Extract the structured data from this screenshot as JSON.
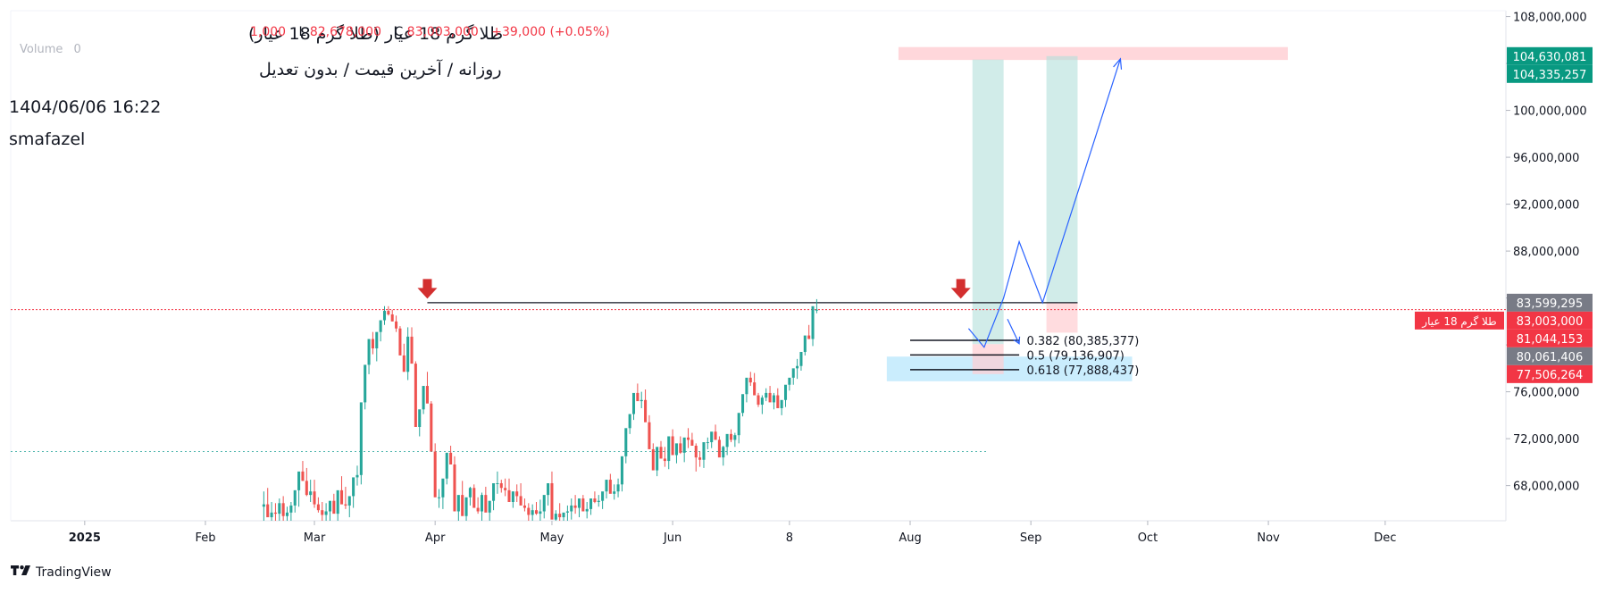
{
  "header": {
    "title": "طلا گرم 18 عیار (طلا گرم 18 عیار)",
    "ohlc_high": "1,000",
    "ohlc_low_label": "L",
    "ohlc_low": "82,678,000",
    "ohlc_close_label": "C",
    "ohlc_close": "83,003,000",
    "change": "+39,000 (+0.05%)",
    "volume_label": "Volume",
    "volume_value": "0",
    "subtitle": "روزانه / آخرین قیمت / بدون تعدیل",
    "datetime": "1404/06/06 16:22",
    "author": "smafazel"
  },
  "footer": {
    "brand": "TradingView",
    "brand_logo": "tradingview-logo-icon"
  },
  "colors": {
    "up": "#26a69a",
    "down": "#ef5350",
    "arrow": "#d32f2f",
    "target": "#ffcdd2",
    "long_zone": "#b2dfdb",
    "fib_zone": "#b3e5fc",
    "projection": "#2962ff",
    "price_line": "#f23645"
  },
  "chart_data": {
    "type": "candlestick",
    "symbol": "طلا گرم 18 عیار",
    "y_axis": {
      "ticks": [
        108000000,
        104000000,
        100000000,
        96000000,
        92000000,
        88000000,
        84000000,
        80000000,
        76000000,
        72000000,
        68000000
      ],
      "tick_labels": [
        "108,000,000",
        "",
        "100,000,000",
        "96,000,000",
        "92,000,000",
        "88,000,000",
        "",
        "",
        "76,000,000",
        "72,000,000",
        "68,000,000"
      ],
      "range": [
        65000000,
        108500000
      ]
    },
    "x_axis": {
      "labels": [
        "2025",
        "Feb",
        "Mar",
        "Apr",
        "May",
        "Jun",
        "8",
        "Aug",
        "Sep",
        "Oct",
        "Nov",
        "Dec"
      ],
      "label_days": [
        0,
        31,
        59,
        90,
        120,
        151,
        181,
        212,
        243,
        273,
        304,
        334
      ],
      "bold_labels": [
        "2025"
      ],
      "range_days": [
        -19,
        365
      ]
    },
    "candles_start_day": 46,
    "candles_ohlc": [
      [
        66.2,
        67.5,
        65.0,
        66.4
      ],
      [
        66.4,
        67.8,
        65.8,
        65.3
      ],
      [
        65.3,
        66.6,
        65.0,
        65.7
      ],
      [
        65.7,
        66.5,
        65.0,
        65.6
      ],
      [
        65.6,
        66.9,
        65.0,
        66.5
      ],
      [
        66.5,
        67.1,
        65.0,
        65.4
      ],
      [
        65.4,
        66.2,
        65.0,
        65.7
      ],
      [
        65.7,
        66.6,
        65.0,
        66.3
      ],
      [
        66.3,
        67.6,
        65.7,
        67.6
      ],
      [
        67.6,
        68.3,
        66.2,
        69.2
      ],
      [
        69.2,
        70.1,
        68.4,
        68.4
      ],
      [
        68.4,
        69.5,
        67.1,
        67.2
      ],
      [
        67.2,
        68.5,
        66.6,
        67.5
      ],
      [
        67.5,
        68.5,
        66.1,
        66.4
      ],
      [
        66.4,
        67.0,
        65.7,
        65.9
      ],
      [
        65.9,
        66.6,
        65.0,
        65.5
      ],
      [
        65.5,
        66.5,
        65.0,
        65.8
      ],
      [
        65.8,
        66.4,
        65.0,
        66.7
      ],
      [
        66.7,
        67.3,
        65.8,
        65.6
      ],
      [
        65.6,
        66.4,
        65.0,
        67.6
      ],
      [
        67.6,
        68.8,
        67.1,
        66.4
      ],
      [
        66.4,
        67.9,
        66.0,
        66.3
      ],
      [
        66.3,
        66.9,
        65.3,
        67.1
      ],
      [
        67.1,
        68.3,
        66.1,
        68.7
      ],
      [
        68.7,
        69.7,
        68.0,
        68.9
      ],
      [
        68.9,
        69.7,
        68.1,
        75.1
      ],
      [
        75.1,
        75.9,
        74.5,
        78.3
      ],
      [
        78.3,
        79.3,
        77.5,
        80.5
      ],
      [
        80.5,
        81.1,
        79.2,
        79.7
      ],
      [
        79.7,
        80.7,
        78.6,
        81.1
      ],
      [
        81.1,
        81.9,
        80.3,
        82.1
      ],
      [
        82.1,
        83.3,
        81.7,
        82.9
      ],
      [
        82.9,
        83.3,
        82.5,
        82.6
      ],
      [
        82.6,
        83.0,
        82.0,
        82.0
      ],
      [
        82.0,
        82.5,
        81.1,
        81.4
      ],
      [
        81.4,
        81.6,
        80.5,
        79.1
      ],
      [
        79.1,
        80.1,
        78.5,
        77.7
      ],
      [
        77.7,
        81.5,
        77.0,
        80.7
      ],
      [
        80.7,
        81.5,
        79.2,
        78.4
      ],
      [
        78.4,
        78.6,
        77.1,
        73.0
      ],
      [
        73.0,
        74.0,
        72.2,
        74.5
      ],
      [
        74.5,
        76.4,
        74.1,
        76.5
      ],
      [
        76.5,
        77.7,
        75.5,
        75.0
      ],
      [
        75.0,
        75.2,
        74.1,
        70.9
      ],
      [
        70.9,
        71.6,
        70.4,
        67.0
      ],
      [
        67.0,
        67.7,
        66.1,
        67.0
      ],
      [
        67.0,
        67.9,
        66.0,
        68.6
      ],
      [
        68.6,
        70.0,
        68.1,
        70.8
      ],
      [
        70.8,
        71.4,
        69.8,
        69.8
      ],
      [
        69.8,
        70.5,
        69.2,
        65.8
      ],
      [
        65.8,
        66.6,
        65.0,
        67.2
      ],
      [
        67.2,
        68.4,
        66.4,
        65.4
      ],
      [
        65.4,
        65.8,
        65.0,
        67.0
      ],
      [
        67.0,
        67.9,
        66.3,
        67.8
      ],
      [
        67.8,
        68.1,
        66.9,
        66.1
      ],
      [
        66.1,
        67.0,
        65.6,
        65.8
      ],
      [
        65.8,
        67.4,
        65.0,
        67.2
      ],
      [
        67.2,
        67.9,
        66.2,
        65.7
      ],
      [
        65.7,
        66.5,
        65.0,
        66.7
      ],
      [
        66.7,
        67.7,
        65.9,
        68.2
      ],
      [
        68.2,
        69.2,
        67.3,
        68.2
      ],
      [
        68.2,
        68.5,
        67.4,
        67.8
      ],
      [
        67.8,
        68.6,
        67.1,
        67.6
      ],
      [
        67.6,
        68.6,
        66.9,
        66.6
      ],
      [
        66.6,
        67.5,
        66.1,
        67.5
      ],
      [
        67.5,
        68.1,
        66.6,
        67.1
      ],
      [
        67.1,
        68.2,
        66.5,
        66.3
      ],
      [
        66.3,
        66.9,
        65.8,
        66.1
      ],
      [
        66.1,
        66.5,
        65.0,
        65.5
      ],
      [
        65.5,
        66.4,
        65.0,
        65.9
      ],
      [
        65.9,
        66.6,
        65.5,
        65.6
      ],
      [
        65.6,
        66.8,
        65.0,
        65.8
      ],
      [
        65.8,
        66.5,
        65.2,
        67.2
      ],
      [
        67.2,
        67.9,
        66.3,
        68.2
      ],
      [
        68.2,
        69.2,
        67.8,
        65.1
      ],
      [
        65.1,
        65.9,
        65.0,
        65.6
      ],
      [
        65.6,
        66.5,
        65.0,
        65.3
      ],
      [
        65.3,
        65.5,
        65.0,
        65.7
      ],
      [
        65.7,
        66.3,
        65.0,
        65.8
      ],
      [
        65.8,
        66.9,
        65.1,
        66.3
      ],
      [
        66.3,
        67.2,
        65.6,
        66.1
      ],
      [
        66.1,
        66.5,
        65.3,
        66.9
      ],
      [
        66.9,
        67.2,
        65.8,
        65.8
      ],
      [
        65.8,
        66.6,
        65.2,
        66.0
      ],
      [
        66.0,
        66.3,
        65.5,
        66.9
      ],
      [
        66.9,
        67.5,
        66.5,
        66.6
      ],
      [
        66.6,
        67.2,
        66.2,
        66.7
      ],
      [
        66.7,
        67.3,
        66.0,
        67.5
      ],
      [
        67.5,
        67.8,
        66.9,
        68.5
      ],
      [
        68.5,
        69.0,
        67.8,
        67.3
      ],
      [
        67.3,
        68.1,
        66.8,
        67.5
      ],
      [
        67.5,
        68.6,
        67.0,
        68.1
      ],
      [
        68.1,
        68.5,
        67.5,
        70.5
      ],
      [
        70.5,
        71.2,
        69.9,
        72.9
      ],
      [
        72.9,
        73.6,
        72.4,
        74.1
      ],
      [
        74.1,
        75.1,
        73.6,
        75.9
      ],
      [
        75.9,
        76.7,
        75.5,
        75.2
      ],
      [
        75.2,
        76.0,
        74.6,
        75.3
      ],
      [
        75.3,
        76.2,
        74.9,
        73.4
      ],
      [
        73.4,
        74.0,
        72.3,
        71.1
      ],
      [
        71.1,
        71.6,
        70.0,
        69.3
      ],
      [
        69.3,
        70.4,
        68.8,
        71.3
      ],
      [
        71.3,
        71.8,
        70.7,
        70.3
      ],
      [
        70.3,
        71.3,
        69.6,
        70.1
      ],
      [
        70.1,
        71.0,
        69.4,
        72.2
      ],
      [
        72.2,
        72.8,
        71.6,
        70.6
      ],
      [
        70.6,
        70.9,
        69.9,
        71.6
      ],
      [
        71.6,
        72.2,
        70.7,
        70.8
      ],
      [
        70.8,
        71.0,
        70.0,
        72.1
      ],
      [
        72.1,
        72.9,
        71.2,
        71.9
      ],
      [
        71.9,
        72.5,
        71.4,
        71.4
      ],
      [
        71.4,
        71.6,
        69.2,
        70.4
      ],
      [
        70.4,
        70.9,
        69.6,
        70.2
      ],
      [
        70.2,
        71.1,
        69.5,
        71.7
      ],
      [
        71.7,
        72.1,
        71.1,
        71.7
      ],
      [
        71.7,
        72.1,
        71.2,
        72.6
      ],
      [
        72.6,
        73.2,
        72.1,
        71.9
      ],
      [
        71.9,
        72.2,
        71.3,
        70.4
      ],
      [
        70.4,
        71.4,
        69.7,
        71.3
      ],
      [
        71.3,
        71.7,
        70.6,
        72.4
      ],
      [
        72.4,
        72.8,
        71.7,
        71.9
      ],
      [
        71.9,
        72.5,
        71.3,
        72.3
      ],
      [
        72.3,
        73.1,
        71.6,
        74.2
      ],
      [
        74.2,
        75.5,
        73.9,
        75.8
      ],
      [
        75.8,
        76.5,
        75.1,
        77.2
      ],
      [
        77.2,
        77.7,
        76.5,
        76.8
      ],
      [
        76.8,
        77.6,
        76.2,
        75.7
      ],
      [
        75.7,
        75.9,
        74.7,
        74.9
      ],
      [
        74.9,
        75.7,
        74.1,
        75.5
      ],
      [
        75.5,
        76.3,
        75.2,
        75.9
      ],
      [
        75.9,
        76.5,
        75.2,
        75.1
      ],
      [
        75.1,
        75.9,
        74.5,
        75.7
      ],
      [
        75.7,
        76.3,
        75.0,
        74.6
      ],
      [
        74.6,
        75.1,
        74.0,
        75.3
      ],
      [
        75.3,
        76.0,
        74.7,
        76.6
      ],
      [
        76.6,
        77.1,
        76.1,
        77.2
      ],
      [
        77.2,
        77.6,
        76.6,
        78.0
      ],
      [
        78.0,
        78.8,
        77.1,
        78.2
      ],
      [
        78.2,
        79.2,
        77.8,
        79.4
      ],
      [
        79.4,
        80.3,
        79.1,
        80.8
      ],
      [
        80.8,
        81.7,
        80.5,
        80.5
      ],
      [
        80.5,
        81.1,
        79.9,
        83.3
      ],
      [
        83.0,
        83.9,
        82.7,
        83.0
      ]
    ],
    "resistance_level": 83599295,
    "current_price": 83003000,
    "fibonacci": [
      {
        "ratio": "0.382",
        "label": "0.382 (80,385,377)",
        "value": 80385377
      },
      {
        "ratio": "0.5",
        "label": "0.5 (79,136,907)",
        "value": 79136907
      },
      {
        "ratio": "0.618",
        "label": "0.618 (77,888,437)",
        "value": 77888437
      }
    ],
    "price_tags": [
      {
        "label": "104,630,081",
        "value": 104630081,
        "color": "#089981"
      },
      {
        "label": "104,335,257",
        "value": 104335257,
        "color": "#089981"
      },
      {
        "label": "83,599,295",
        "value": 83599295,
        "color": "#787b86"
      },
      {
        "label": "83,003,000",
        "value": 83003000,
        "color": "#f23645",
        "symbol_tag": "طلا گرم 18 عیار"
      },
      {
        "label": "81,044,153",
        "value": 81044153,
        "color": "#f23645"
      },
      {
        "label": "80,061,406",
        "value": 80061406,
        "color": "#787b86"
      },
      {
        "label": "77,506,264",
        "value": 77506264,
        "color": "#f23645"
      }
    ],
    "target_zone": {
      "from": 104300000,
      "to": 105400000,
      "day_from": 209,
      "day_to": 309
    },
    "long_positions": [
      {
        "day_from": 228,
        "day_to": 236,
        "entry": 80061406,
        "target": 104335257,
        "stop": 77506264
      },
      {
        "day_from": 247,
        "day_to": 255,
        "entry": 83599295,
        "target": 104630081,
        "stop": 81044153
      }
    ],
    "fib_zone": {
      "from": 76900000,
      "to": 79000000,
      "day_from": 206,
      "day_to": 269
    },
    "support_dotted": {
      "value": 70900000,
      "day_from": -19,
      "day_to": 232
    },
    "projection_path": [
      [
        227,
        81400000
      ],
      [
        231,
        79800000
      ],
      [
        236,
        84000000
      ],
      [
        240,
        88800000
      ],
      [
        246,
        83600000
      ],
      [
        266,
        104400000
      ]
    ],
    "projection_path_2": [
      [
        237,
        82200000
      ],
      [
        240,
        80100000
      ]
    ],
    "markers": [
      {
        "type": "down-arrow",
        "day": 88,
        "value": 84700000
      },
      {
        "type": "down-arrow",
        "day": 225,
        "value": 84700000
      }
    ]
  }
}
